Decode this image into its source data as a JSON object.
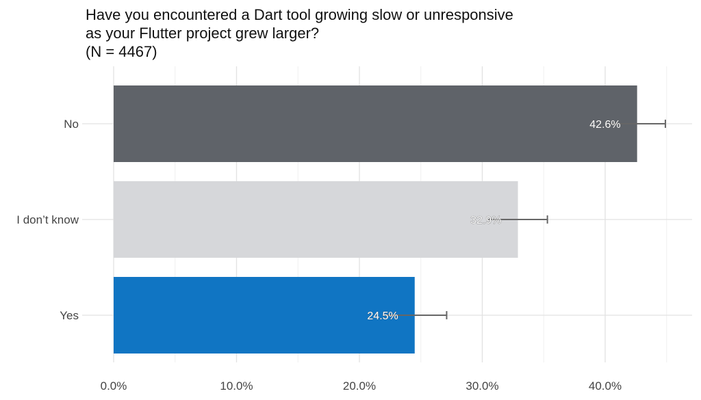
{
  "chart_data": {
    "type": "bar",
    "orientation": "horizontal",
    "title_lines": [
      "Have you encountered a Dart tool growing slow or unresponsive",
      "as your Flutter project grew larger?",
      "(N = 4467)"
    ],
    "categories": [
      "No",
      "I don’t know",
      "Yes"
    ],
    "values": [
      42.6,
      32.9,
      24.5
    ],
    "value_labels": [
      "42.6%",
      "32.9%",
      "24.5%"
    ],
    "error_high": [
      44.9,
      35.3,
      27.1
    ],
    "colors": [
      "#5f6369",
      "#d6d7da",
      "#1075c3"
    ],
    "xlim": [
      0,
      45
    ],
    "x_ticks": [
      0,
      10,
      20,
      30,
      40
    ],
    "x_tick_labels": [
      "0.0%",
      "10.0%",
      "20.0%",
      "30.0%",
      "40.0%"
    ],
    "xlabel": "",
    "ylabel": "",
    "grid": true,
    "legend": "none"
  }
}
